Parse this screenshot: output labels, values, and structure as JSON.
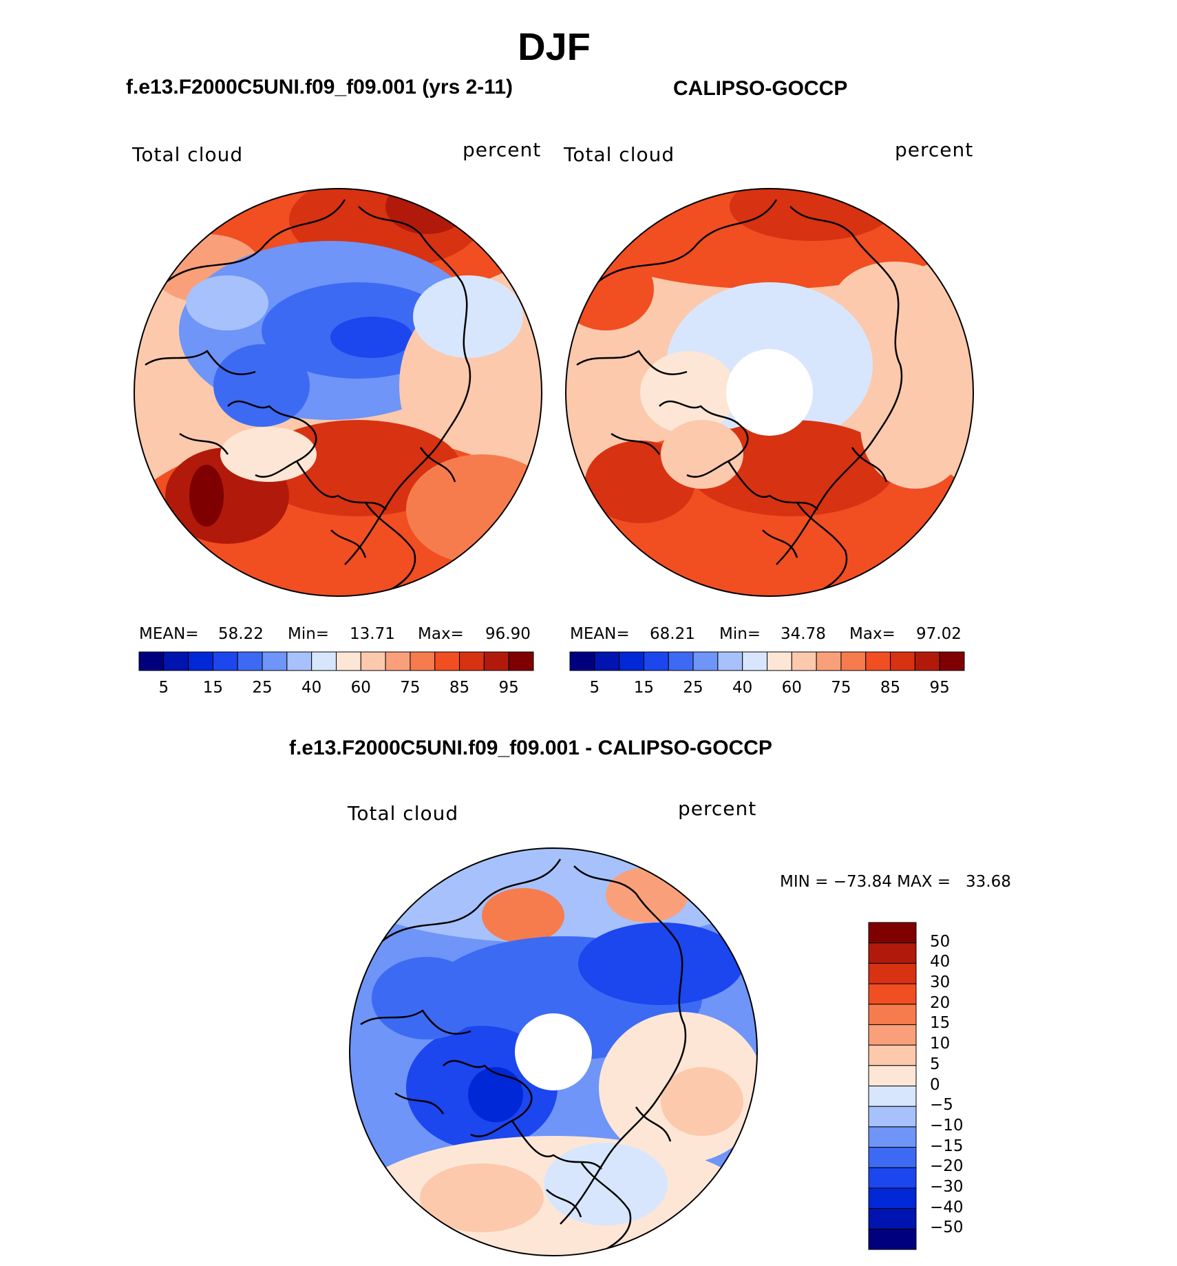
{
  "figure": {
    "title": "DJF",
    "diff_title": "f.e13.F2000C5UNI.f09_f09.001 - CALIPSO-GOCCP"
  },
  "panels": [
    {
      "title": "f.e13.F2000C5UNI.f09_f09.001 (yrs 2-11)",
      "field_label": "Total cloud",
      "units": "percent",
      "stats": {
        "mean_label": "MEAN=",
        "mean": "58.22",
        "min_label": "Min=",
        "min": "13.71",
        "max_label": "Max=",
        "max": "96.90"
      }
    },
    {
      "title": "CALIPSO-GOCCP",
      "field_label": "Total cloud",
      "units": "percent",
      "stats": {
        "mean_label": "MEAN=",
        "mean": "68.21",
        "min_label": "Min=",
        "min": "34.78",
        "max_label": "Max=",
        "max": "97.02"
      }
    },
    {
      "field_label": "Total cloud",
      "units": "percent",
      "min_max_text": "MIN = −73.84 MAX =   33.68"
    }
  ],
  "colorbar_abs": {
    "labels": [
      "5",
      "15",
      "25",
      "40",
      "60",
      "75",
      "85",
      "95"
    ],
    "colors": [
      "#00007f",
      "#0015b0",
      "#0028d6",
      "#1c46ee",
      "#3d6af3",
      "#6e95f7",
      "#a6c1fb",
      "#d7e6fd",
      "#fde6d6",
      "#fcc9ac",
      "#f9a07a",
      "#f67c4e",
      "#f14e22",
      "#d73212",
      "#b11a0a",
      "#7f0000"
    ]
  },
  "colorbar_diff": {
    "labels": [
      "50",
      "40",
      "30",
      "20",
      "15",
      "10",
      "5",
      "0",
      "−5",
      "−10",
      "−15",
      "−20",
      "−30",
      "−40",
      "−50"
    ],
    "colors": [
      "#7f0000",
      "#b11a0a",
      "#d73212",
      "#f14e22",
      "#f67c4e",
      "#f9a07a",
      "#fcc9ac",
      "#fde6d6",
      "#d7e6fd",
      "#a6c1fb",
      "#6e95f7",
      "#3d6af3",
      "#1c46ee",
      "#0028d6",
      "#0015b0",
      "#00007f"
    ]
  },
  "chart_data": {
    "type": "heatmap",
    "title": "DJF",
    "projection": "north polar stereographic",
    "variable": "Total cloud",
    "units": "percent",
    "maps": [
      {
        "name": "f.e13.F2000C5UNI.f09_f09.001 (yrs 2-11)",
        "mean": 58.22,
        "min": 13.71,
        "max": 96.9,
        "levels": [
          5,
          10,
          15,
          20,
          25,
          30,
          40,
          50,
          60,
          70,
          75,
          80,
          85,
          90,
          95
        ]
      },
      {
        "name": "CALIPSO-GOCCP",
        "mean": 68.21,
        "min": 34.78,
        "max": 97.02,
        "levels": [
          5,
          10,
          15,
          20,
          25,
          30,
          40,
          50,
          60,
          70,
          75,
          80,
          85,
          90,
          95
        ]
      },
      {
        "name": "f.e13.F2000C5UNI.f09_f09.001 - CALIPSO-GOCCP",
        "min": -73.84,
        "max": 33.68,
        "levels": [
          -50,
          -40,
          -30,
          -20,
          -15,
          -10,
          -5,
          0,
          5,
          10,
          15,
          20,
          30,
          40,
          50
        ]
      }
    ]
  }
}
